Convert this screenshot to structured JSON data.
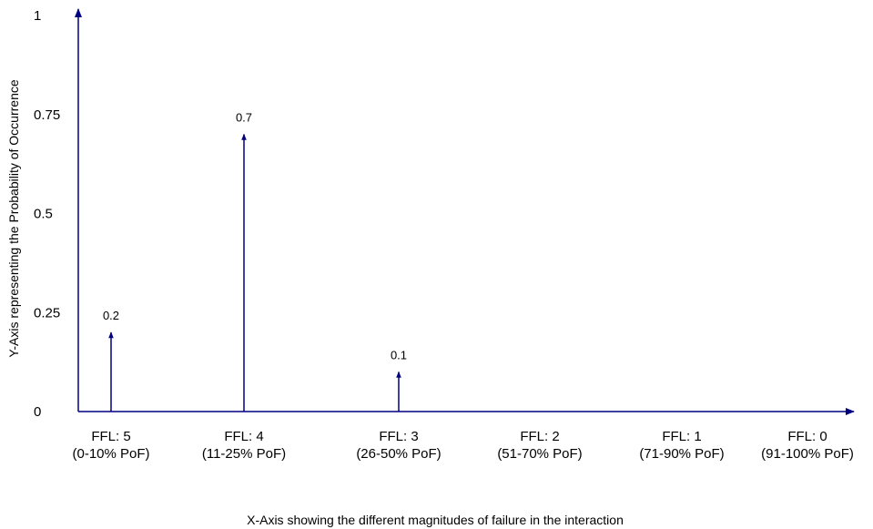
{
  "chart_data": {
    "type": "bar",
    "title": "",
    "xlabel": "X-Axis showing the different magnitudes of failure in the interaction",
    "ylabel": "Y-Axis representing the Probability of Occurrence",
    "ylim": [
      0,
      1
    ],
    "yticks": [
      "0",
      "0.25",
      "0.5",
      "0.75",
      "1"
    ],
    "categories": [
      {
        "line1": "FFL: 5",
        "line2": "(0-10% PoF)"
      },
      {
        "line1": "FFL: 4",
        "line2": "(11-25% PoF)"
      },
      {
        "line1": "FFL: 3",
        "line2": "(26-50% PoF)"
      },
      {
        "line1": "FFL: 2",
        "line2": "(51-70% PoF)"
      },
      {
        "line1": "FFL: 1",
        "line2": "(71-90% PoF)"
      },
      {
        "line1": "FFL: 0",
        "line2": "(91-100% PoF)"
      }
    ],
    "values": [
      0.2,
      0.7,
      0.1,
      null,
      null,
      null
    ],
    "data_labels": [
      "0.2",
      "0.7",
      "0.1",
      "",
      "",
      ""
    ],
    "mark_style": "arrow-stem",
    "grid": false,
    "legend": "none",
    "colors": {
      "axis": "#000080",
      "stem": "#000080",
      "text": "#000000"
    }
  }
}
